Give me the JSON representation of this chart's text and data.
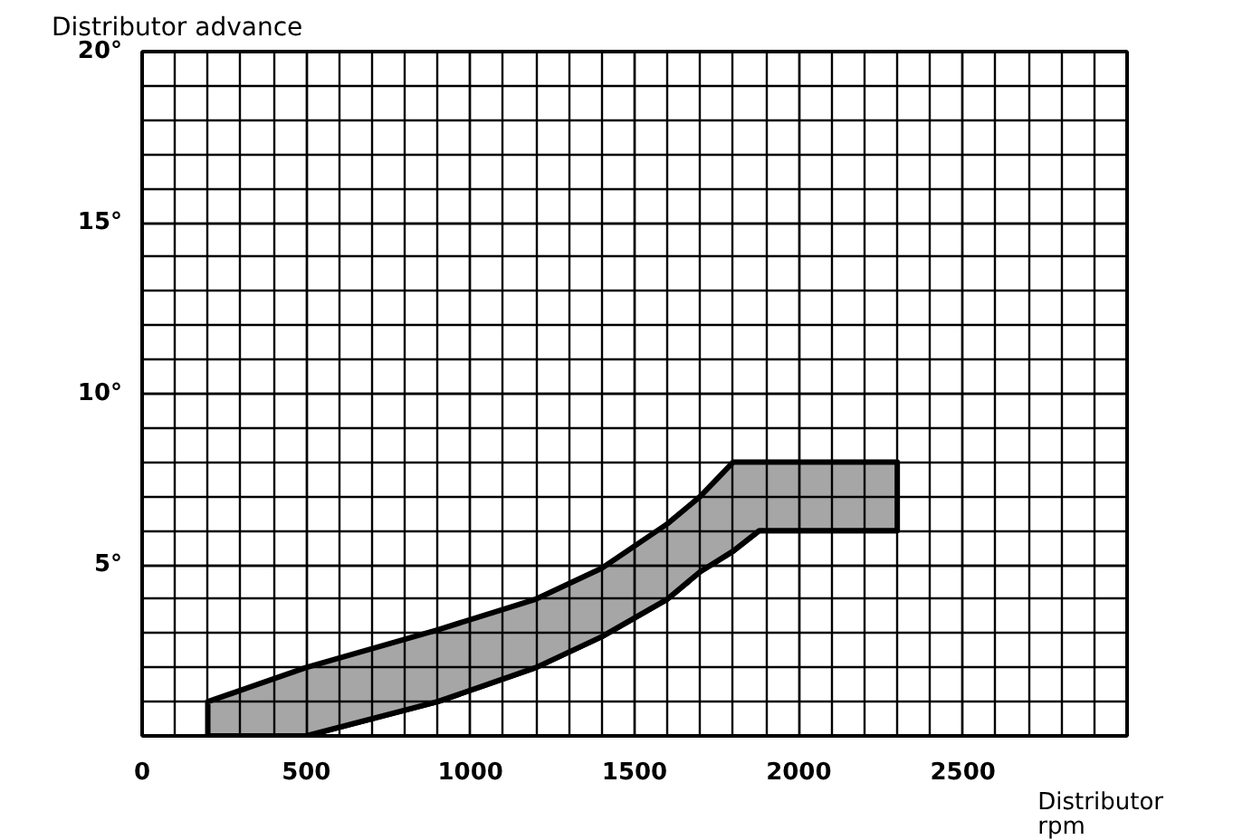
{
  "chart_data": {
    "type": "area",
    "ylabel": "Distributor advance",
    "xlabel": "Distributor\nrpm",
    "x": [
      200,
      500,
      900,
      1200,
      1400,
      1600,
      1700,
      1800,
      1880,
      2300
    ],
    "series": [
      {
        "color": "#ffffff",
        "values": [
          0,
          0,
          1.0,
          2.0,
          2.9,
          4.0,
          4.8,
          5.4,
          6,
          6
        ]
      },
      {
        "color": "#a6a6a6",
        "values": [
          1,
          2,
          2.1,
          2.0,
          2.0,
          2.2,
          2.2,
          2.6,
          2,
          2
        ]
      }
    ],
    "stacked": true,
    "xlim": [
      0,
      3000
    ],
    "ylim": [
      0,
      20
    ],
    "xticks": [
      0,
      500,
      1000,
      1500,
      2000,
      2500
    ],
    "yticks": [
      {
        "value": 5,
        "label": "5°"
      },
      {
        "value": 10,
        "label": "10°"
      },
      {
        "value": 15,
        "label": "15°"
      },
      {
        "value": 20,
        "label": "20°"
      }
    ],
    "grid": true
  }
}
